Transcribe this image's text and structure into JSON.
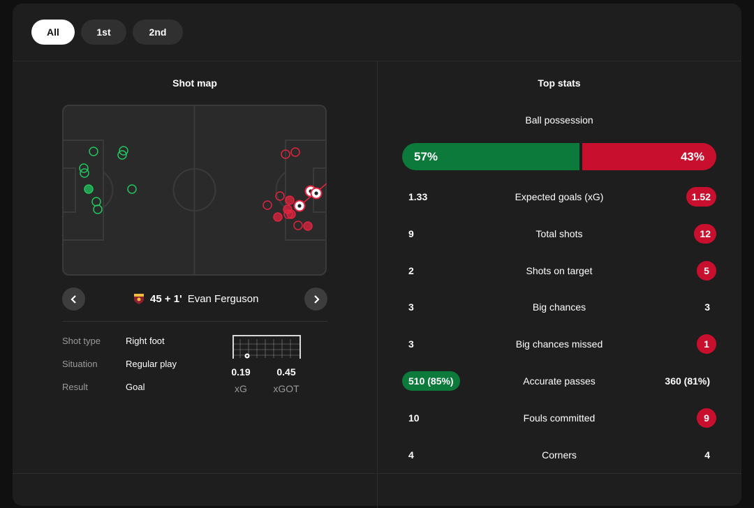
{
  "period_tabs": [
    {
      "label": "All",
      "active": true
    },
    {
      "label": "1st",
      "active": false
    },
    {
      "label": "2nd",
      "active": false
    }
  ],
  "shot_map": {
    "title": "Shot map",
    "selected_shot": {
      "minute": "45 + 1'",
      "player": "Evan Ferguson",
      "team_badge": "roma-crest-icon"
    },
    "details": [
      {
        "key": "Shot type",
        "value": "Right foot"
      },
      {
        "key": "Situation",
        "value": "Regular play"
      },
      {
        "key": "Result",
        "value": "Goal"
      }
    ],
    "xg": {
      "value": "0.19",
      "label": "xG"
    },
    "xgot": {
      "value": "0.45",
      "label": "xGOT"
    },
    "prev_icon": "chevron-left-icon",
    "next_icon": "chevron-right-icon"
  },
  "top_stats": {
    "title": "Top stats",
    "possession": {
      "label": "Ball possession",
      "home": "57%",
      "away": "43%",
      "home_pct": 57,
      "away_pct": 43
    },
    "rows": [
      {
        "name": "Expected goals (xG)",
        "home": "1.33",
        "away": "1.52",
        "highlight": "away"
      },
      {
        "name": "Total shots",
        "home": "9",
        "away": "12",
        "highlight": "away"
      },
      {
        "name": "Shots on target",
        "home": "2",
        "away": "5",
        "highlight": "away"
      },
      {
        "name": "Big chances",
        "home": "3",
        "away": "3",
        "highlight": "none"
      },
      {
        "name": "Big chances missed",
        "home": "3",
        "away": "1",
        "highlight": "away"
      },
      {
        "name": "Accurate passes",
        "home": "510 (85%)",
        "away": "360 (81%)",
        "highlight": "home"
      },
      {
        "name": "Fouls committed",
        "home": "10",
        "away": "9",
        "highlight": "away"
      },
      {
        "name": "Corners",
        "home": "4",
        "away": "4",
        "highlight": "none"
      }
    ]
  },
  "colors": {
    "home": "#0b7a3b",
    "away": "#c8102e",
    "home_shot": "#22c55e",
    "away_shot": "#e0243f",
    "background": "#1e1e1e"
  }
}
